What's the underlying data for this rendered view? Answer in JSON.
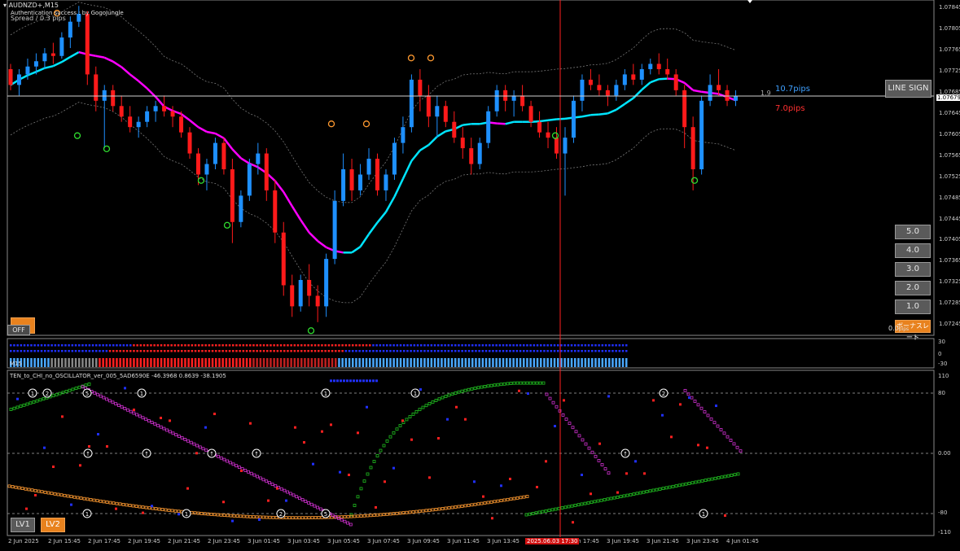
{
  "window": {
    "symbol_title": "AUDNZD+,M15",
    "auth_line": "Authentication success : by GogoJungle",
    "spread_line": "Spread / 0.3 pips"
  },
  "main": {
    "price_labels": [
      "1.07845",
      "1.07805",
      "1.07765",
      "1.07725",
      "1.07685",
      "1.07645",
      "1.07605",
      "1.07565",
      "1.07525",
      "1.07485",
      "1.07445",
      "1.07405",
      "1.07365",
      "1.07325",
      "1.07285",
      "1.07245"
    ],
    "current_price_label": "1.07679",
    "pips_up": "10.7pips",
    "pips_down": "7.0pips",
    "spread_value": "1.9",
    "line_sign_button": "LINE SIGN",
    "level_buttons": [
      "5.0",
      "4.0",
      "3.0",
      "2.0",
      "1.0"
    ],
    "bottom_right_text": "0.0",
    "bottom_right_text2": "ボーナスレート",
    "off_button": "OFF",
    "pip_unit": "pips"
  },
  "strip": {
    "labels": [
      "30",
      "0",
      "-30"
    ],
    "tag": "M15"
  },
  "oscillator": {
    "title": "TEN_to_CHI_no_OSCILLATOR_ver_005_5AD6590E -46.3968 0.8639 -38.1905",
    "scale_labels": [
      "110",
      "80",
      "0.00",
      "0.00",
      "-80",
      "-110"
    ],
    "lv1": "LV1",
    "lv2": "LV2"
  },
  "time_axis": {
    "labels": [
      "2 Jun 2025",
      "2 Jun 15:45",
      "2 Jun 17:45",
      "2 Jun 19:45",
      "2 Jun 21:45",
      "2 Jun 23:45",
      "3 Jun 01:45",
      "3 Jun 03:45",
      "3 Jun 05:45",
      "3 Jun 07:45",
      "3 Jun 09:45",
      "3 Jun 11:45",
      "3 Jun 13:45",
      "3 Jun 15:45",
      "3 Jun 17:45",
      "3 Jun 19:45",
      "3 Jun 21:45",
      "3 Jun 23:45",
      "4 Jun 01:45"
    ],
    "highlight_label": "2025.06.03 17:30"
  },
  "colors": {
    "bull": "#1e90ff",
    "bear": "#ff1a1a",
    "ma_up": "#00e5ff",
    "ma_down": "#ff00ff",
    "accent": "#e8821e",
    "crosshair": "#ff2020"
  },
  "chart_data": {
    "type": "candlestick",
    "title": "AUDNZD+,M15",
    "ylim": [
      1.07225,
      1.07855
    ],
    "candles": [
      [
        1.0773,
        1.0774,
        1.0769,
        1.077
      ],
      [
        1.077,
        1.0773,
        1.0768,
        1.0772
      ],
      [
        1.0772,
        1.0775,
        1.0771,
        1.07735
      ],
      [
        1.07735,
        1.0776,
        1.0772,
        1.07745
      ],
      [
        1.07745,
        1.0777,
        1.0773,
        1.0776
      ],
      [
        1.0776,
        1.0778,
        1.0774,
        1.07755
      ],
      [
        1.07755,
        1.078,
        1.0775,
        1.0779
      ],
      [
        1.0779,
        1.0783,
        1.0777,
        1.0782
      ],
      [
        1.0782,
        1.0785,
        1.0781,
        1.07835
      ],
      [
        1.07835,
        1.0784,
        1.077,
        1.0772
      ],
      [
        1.0772,
        1.07735,
        1.0765,
        1.0767
      ],
      [
        1.0767,
        1.077,
        1.0758,
        1.0769
      ],
      [
        1.0769,
        1.077,
        1.0765,
        1.0766
      ],
      [
        1.0766,
        1.0768,
        1.0763,
        1.0764
      ],
      [
        1.0764,
        1.0766,
        1.0761,
        1.0762
      ],
      [
        1.0762,
        1.0764,
        1.076,
        1.0763
      ],
      [
        1.0763,
        1.0766,
        1.0762,
        1.0765
      ],
      [
        1.0765,
        1.0767,
        1.0763,
        1.0766
      ],
      [
        1.0766,
        1.0768,
        1.0764,
        1.0765
      ],
      [
        1.0765,
        1.0766,
        1.0762,
        1.0764
      ],
      [
        1.0764,
        1.0765,
        1.076,
        1.0761
      ],
      [
        1.0761,
        1.0762,
        1.0756,
        1.0757
      ],
      [
        1.0757,
        1.0758,
        1.0751,
        1.0753
      ],
      [
        1.0753,
        1.0756,
        1.075,
        1.0755
      ],
      [
        1.0755,
        1.076,
        1.0754,
        1.0759
      ],
      [
        1.0759,
        1.076,
        1.0753,
        1.0754
      ],
      [
        1.0754,
        1.0756,
        1.074,
        1.0744
      ],
      [
        1.0744,
        1.075,
        1.0743,
        1.0749
      ],
      [
        1.0749,
        1.0756,
        1.0748,
        1.0755
      ],
      [
        1.0755,
        1.0759,
        1.0753,
        1.0757
      ],
      [
        1.0757,
        1.0758,
        1.0748,
        1.075
      ],
      [
        1.075,
        1.0752,
        1.074,
        1.0742
      ],
      [
        1.0742,
        1.0744,
        1.073,
        1.0732
      ],
      [
        1.0732,
        1.0734,
        1.0726,
        1.0728
      ],
      [
        1.0728,
        1.0734,
        1.0727,
        1.0733
      ],
      [
        1.0733,
        1.0736,
        1.0728,
        1.073
      ],
      [
        1.073,
        1.0732,
        1.0725,
        1.0728
      ],
      [
        1.0728,
        1.0738,
        1.0726,
        1.0737
      ],
      [
        1.0737,
        1.075,
        1.0736,
        1.0748
      ],
      [
        1.0748,
        1.0757,
        1.0747,
        1.0754
      ],
      [
        1.0754,
        1.0756,
        1.0748,
        1.075
      ],
      [
        1.075,
        1.0755,
        1.0749,
        1.0753
      ],
      [
        1.0753,
        1.0758,
        1.0752,
        1.0756
      ],
      [
        1.0756,
        1.0757,
        1.0749,
        1.075
      ],
      [
        1.075,
        1.0754,
        1.0748,
        1.0753
      ],
      [
        1.0753,
        1.076,
        1.0752,
        1.0759
      ],
      [
        1.0759,
        1.0764,
        1.0757,
        1.0762
      ],
      [
        1.0762,
        1.0772,
        1.0761,
        1.0771
      ],
      [
        1.0771,
        1.0773,
        1.0765,
        1.0768
      ],
      [
        1.0768,
        1.077,
        1.0762,
        1.0764
      ],
      [
        1.0764,
        1.0768,
        1.076,
        1.0766
      ],
      [
        1.0766,
        1.0767,
        1.0762,
        1.0763
      ],
      [
        1.0763,
        1.0765,
        1.0759,
        1.076
      ],
      [
        1.076,
        1.0762,
        1.0756,
        1.0758
      ],
      [
        1.0758,
        1.076,
        1.0753,
        1.0755
      ],
      [
        1.0755,
        1.076,
        1.0754,
        1.0759
      ],
      [
        1.0759,
        1.0766,
        1.0758,
        1.0765
      ],
      [
        1.0765,
        1.077,
        1.0764,
        1.0769
      ],
      [
        1.0769,
        1.077,
        1.0765,
        1.0767
      ],
      [
        1.0767,
        1.0769,
        1.0764,
        1.0768
      ],
      [
        1.0768,
        1.077,
        1.0765,
        1.0766
      ],
      [
        1.0766,
        1.0767,
        1.0762,
        1.0763
      ],
      [
        1.0763,
        1.0765,
        1.076,
        1.0761
      ],
      [
        1.0761,
        1.0763,
        1.0758,
        1.076
      ],
      [
        1.076,
        1.0762,
        1.0756,
        1.0757
      ],
      [
        1.0757,
        1.0762,
        1.0749,
        1.076
      ],
      [
        1.076,
        1.0768,
        1.0759,
        1.0767
      ],
      [
        1.0767,
        1.0772,
        1.0765,
        1.0771
      ],
      [
        1.0771,
        1.0773,
        1.0769,
        1.077
      ],
      [
        1.077,
        1.0772,
        1.0768,
        1.0769
      ],
      [
        1.0769,
        1.077,
        1.0766,
        1.0768
      ],
      [
        1.0768,
        1.0771,
        1.0767,
        1.077
      ],
      [
        1.077,
        1.0773,
        1.0769,
        1.0772
      ],
      [
        1.0772,
        1.0774,
        1.077,
        1.0771
      ],
      [
        1.0771,
        1.0774,
        1.077,
        1.0773
      ],
      [
        1.0773,
        1.0775,
        1.0772,
        1.0774
      ],
      [
        1.0774,
        1.0776,
        1.0772,
        1.0773
      ],
      [
        1.0773,
        1.0775,
        1.0771,
        1.0772
      ],
      [
        1.0772,
        1.0773,
        1.0768,
        1.0769
      ],
      [
        1.0769,
        1.077,
        1.0758,
        1.0762
      ],
      [
        1.0762,
        1.0764,
        1.075,
        1.0754
      ],
      [
        1.0754,
        1.0768,
        1.0753,
        1.0767
      ],
      [
        1.0767,
        1.0772,
        1.0766,
        1.077
      ],
      [
        1.077,
        1.0773,
        1.0768,
        1.0769
      ],
      [
        1.0769,
        1.077,
        1.0766,
        1.0767
      ],
      [
        1.0767,
        1.0769,
        1.0766,
        1.07679
      ]
    ],
    "signals_sell_y": [
      1.0783,
      1.07745,
      1.07745,
      1.0762,
      1.0762
    ],
    "signals_buy_y": [
      1.0761,
      1.07585,
      1.07525,
      1.0744,
      1.0724,
      1.0761,
      1.07525
    ],
    "oscillator_ylim": [
      -115,
      115
    ],
    "oscillator_levels": [
      80,
      0,
      -80
    ]
  }
}
